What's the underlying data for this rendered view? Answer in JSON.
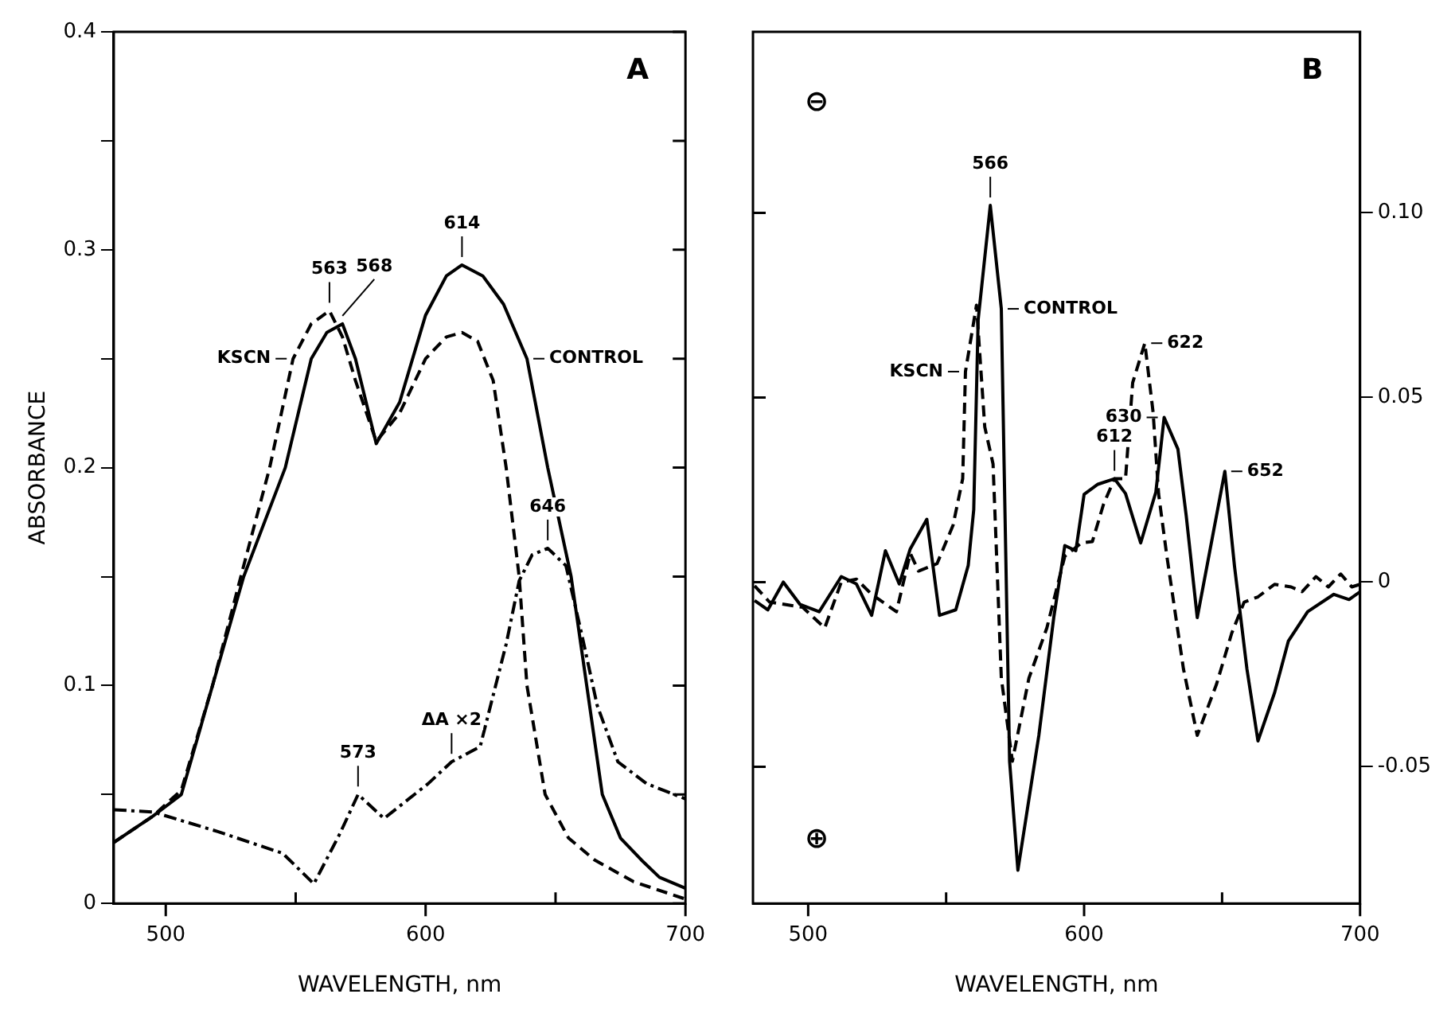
{
  "chart_data": [
    {
      "type": "line",
      "xlabel": "WAVELENGTH, nm",
      "ylabel": "ABSORBANCE",
      "xlim": [
        480,
        700
      ],
      "xticks": [
        500,
        600,
        700
      ],
      "ylim": [
        0,
        0.4
      ],
      "yticks": [
        0,
        {
          "value": 0.05,
          "label": null
        },
        0.1,
        {
          "value": 0.15,
          "label": null
        },
        0.2,
        {
          "value": 0.25,
          "label": null
        },
        0.3,
        {
          "value": 0.35,
          "label": null
        },
        0.4
      ],
      "grid": false,
      "legend": false,
      "marker": "none",
      "series": [
        {
          "color": "#000000",
          "line_style": "solid",
          "x": [
            480,
            495,
            506,
            518,
            530,
            546,
            556,
            562,
            568,
            573,
            581,
            590,
            600,
            608,
            614,
            622,
            630,
            639,
            647,
            656,
            662,
            668,
            675,
            683,
            690,
            700
          ],
          "values": [
            0.028,
            0.04,
            0.05,
            0.1,
            0.15,
            0.2,
            0.25,
            0.262,
            0.266,
            0.25,
            0.211,
            0.23,
            0.27,
            0.288,
            0.293,
            0.288,
            0.275,
            0.25,
            0.2,
            0.15,
            0.1,
            0.05,
            0.03,
            0.02,
            0.012,
            0.007
          ]
        },
        {
          "color": "#000000",
          "line_style": "dashed",
          "x": [
            480,
            495,
            506,
            518,
            530,
            540,
            549,
            556,
            563,
            568,
            573,
            581,
            590,
            600,
            608,
            614,
            620,
            626,
            631,
            636,
            639,
            646,
            655,
            665,
            680,
            700
          ],
          "values": [
            0.028,
            0.04,
            0.052,
            0.1,
            0.155,
            0.2,
            0.25,
            0.266,
            0.272,
            0.26,
            0.24,
            0.212,
            0.225,
            0.25,
            0.26,
            0.262,
            0.258,
            0.24,
            0.2,
            0.15,
            0.1,
            0.05,
            0.03,
            0.02,
            0.01,
            0.002
          ]
        },
        {
          "color": "#000000",
          "line_style": "dashdot",
          "x": [
            480,
            495,
            520,
            545,
            557,
            567,
            574,
            584,
            601,
            610,
            621,
            631,
            636,
            641,
            647,
            654,
            660,
            666,
            674,
            685,
            700
          ],
          "values": [
            0.043,
            0.042,
            0.033,
            0.023,
            0.009,
            0.032,
            0.05,
            0.039,
            0.055,
            0.065,
            0.072,
            0.119,
            0.148,
            0.16,
            0.163,
            0.155,
            0.124,
            0.091,
            0.065,
            0.055,
            0.048
          ]
        }
      ],
      "annotations": [
        {
          "text": "563",
          "x": 563,
          "y": 0.272
        },
        {
          "text": "568",
          "x": 568,
          "y": 0.266
        },
        {
          "text": "614",
          "x": 614,
          "y": 0.293
        },
        {
          "text": "646",
          "x": 647,
          "y": 0.163
        },
        {
          "text": "573",
          "x": 574,
          "y": 0.05
        },
        {
          "text": "ΔA ×2",
          "x": 610,
          "y": 0.065
        },
        {
          "text": "KSCN",
          "x": 549,
          "y": 0.25
        },
        {
          "text": "CONTROL",
          "x": 639,
          "y": 0.25
        },
        "A"
      ]
    },
    {
      "type": "line",
      "xlabel": "WAVELENGTH, nm",
      "xlim": [
        480,
        700
      ],
      "xticks": [
        500,
        600,
        700
      ],
      "ylim": [
        -0.087,
        0.149
      ],
      "yticks": [
        {
          "value": -0.05,
          "label": "-0.05"
        },
        0,
        0.05,
        {
          "value": 0.1,
          "label": "0.10"
        }
      ],
      "grid": false,
      "legend": false,
      "marker": "none",
      "series": [
        {
          "color": "#000000",
          "line_style": "solid",
          "x": [
            480.6,
            485.4,
            491,
            497,
            504,
            512,
            517.5,
            523,
            528,
            533,
            537,
            543,
            547.6,
            553.5,
            558,
            560,
            561.6,
            566,
            570,
            571,
            573,
            576,
            583.6,
            589,
            593,
            597,
            600,
            605,
            611,
            615,
            620.5,
            626,
            629,
            634,
            637,
            641,
            651,
            654.5,
            659,
            663,
            669,
            674,
            681,
            690.5,
            696,
            700
          ],
          "values": [
            -0.005,
            -0.0075,
            0,
            -0.006,
            -0.008,
            0.0015,
            -0.0005,
            -0.009,
            0.0085,
            -0.0005,
            0.009,
            0.017,
            -0.009,
            -0.0075,
            0.0045,
            0.0196,
            0.071,
            0.102,
            0.074,
            0.032,
            -0.0485,
            -0.078,
            -0.0415,
            -0.0096,
            0.0099,
            0.0085,
            0.0238,
            0.0265,
            0.028,
            0.024,
            0.0106,
            0.0244,
            0.0446,
            0.036,
            0.018,
            -0.0096,
            0.03,
            0.0043,
            -0.0235,
            -0.043,
            -0.03,
            -0.016,
            -0.008,
            -0.0033,
            -0.0047,
            -0.0026
          ]
        },
        {
          "color": "#000000",
          "line_style": "dashed",
          "x": [
            480.6,
            486,
            498,
            506,
            512,
            517.5,
            523,
            532,
            537,
            540,
            546.7,
            552.5,
            556,
            557,
            561,
            564,
            567,
            570,
            574,
            580,
            586.5,
            593,
            599,
            603,
            607,
            611,
            615,
            617.6,
            622,
            625,
            627,
            630,
            636,
            641,
            648,
            653.5,
            658,
            663,
            669,
            675,
            679,
            684,
            688.5,
            693,
            697,
            700
          ],
          "values": [
            -0.001,
            -0.0054,
            -0.0068,
            -0.0124,
            0,
            0.0008,
            -0.0033,
            -0.008,
            0.0078,
            0.003,
            0.005,
            0.0154,
            0.028,
            0.057,
            0.075,
            0.042,
            0.032,
            -0.026,
            -0.0485,
            -0.026,
            -0.0124,
            0.007,
            0.0106,
            0.011,
            0.021,
            0.028,
            0.028,
            0.054,
            0.0647,
            0.046,
            0.0238,
            0.007,
            -0.0235,
            -0.0415,
            -0.0276,
            -0.0138,
            -0.0054,
            -0.004,
            -0.0006,
            -0.0013,
            -0.0026,
            0.0015,
            -0.0013,
            0.0022,
            -0.0013,
            -0.0006
          ]
        }
      ],
      "annotations": [
        {
          "text": "566",
          "x": 566,
          "y": 0.102
        },
        {
          "text": "CONTROL",
          "x": 570,
          "y": 0.074
        },
        {
          "text": "622",
          "x": 622,
          "y": 0.0647
        },
        {
          "text": "630",
          "x": 629,
          "y": 0.0446
        },
        {
          "text": "612",
          "x": 611,
          "y": 0.028
        },
        {
          "text": "652",
          "x": 651,
          "y": 0.03
        },
        {
          "text": "KSCN",
          "x": 557,
          "y": 0.057
        },
        "B",
        "⊖",
        "⊕"
      ]
    }
  ]
}
